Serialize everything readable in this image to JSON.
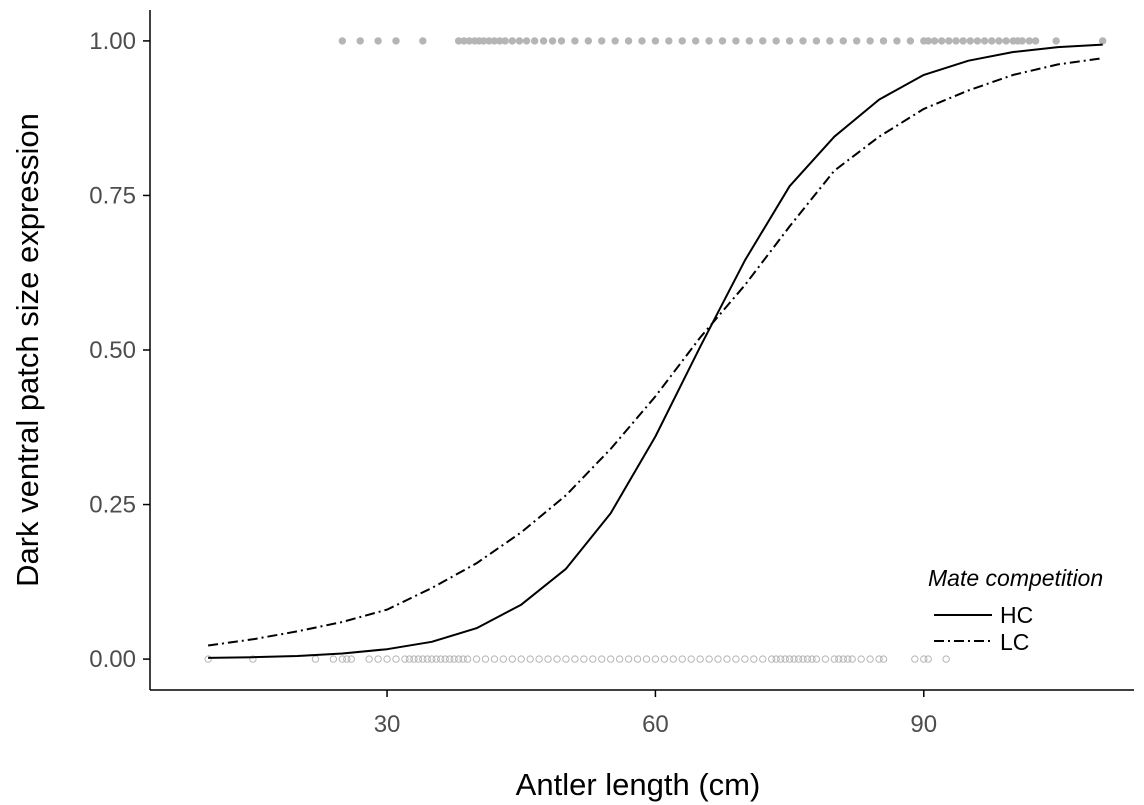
{
  "chart_data": {
    "type": "line",
    "title": "",
    "xlabel": "Antler length (cm)",
    "ylabel": "Dark ventral patch size expression",
    "xlim": [
      3.5,
      113.5
    ],
    "ylim": [
      -0.05,
      1.05
    ],
    "xticks": [
      30,
      60,
      90
    ],
    "xtick_labels": [
      "30",
      "60",
      "90"
    ],
    "yticks": [
      0,
      0.25,
      0.5,
      0.75,
      1
    ],
    "ytick_labels": [
      "0.00",
      "0.25",
      "0.50",
      "0.75",
      "1.00"
    ],
    "grid": false,
    "legend": {
      "title": "Mate competition",
      "position": "right",
      "entries": [
        "HC",
        "LC"
      ]
    },
    "series": [
      {
        "name": "HC",
        "line_style": "solid",
        "color": "#000000",
        "x": [
          10,
          15,
          20,
          25,
          30,
          35,
          40,
          45,
          50,
          55,
          60,
          65,
          70,
          75,
          80,
          85,
          90,
          95,
          100,
          105,
          110
        ],
        "y": [
          0.002,
          0.003,
          0.005,
          0.009,
          0.016,
          0.028,
          0.05,
          0.088,
          0.146,
          0.236,
          0.36,
          0.505,
          0.645,
          0.765,
          0.845,
          0.905,
          0.945,
          0.968,
          0.982,
          0.99,
          0.994
        ]
      },
      {
        "name": "LC",
        "line_style": "dashdot",
        "color": "#000000",
        "x": [
          10,
          15,
          20,
          25,
          30,
          35,
          40,
          45,
          50,
          55,
          60,
          65,
          70,
          75,
          80,
          85,
          90,
          95,
          100,
          105,
          110
        ],
        "y": [
          0.022,
          0.032,
          0.045,
          0.06,
          0.08,
          0.115,
          0.155,
          0.205,
          0.265,
          0.34,
          0.425,
          0.52,
          0.605,
          0.7,
          0.79,
          0.845,
          0.89,
          0.92,
          0.945,
          0.962,
          0.972
        ]
      }
    ],
    "observations": {
      "point_color": "#b5b5b5",
      "filled_at_1": [
        25,
        27,
        29,
        31,
        34,
        38,
        38.6,
        39.2,
        39.8,
        40.3,
        40.8,
        41.4,
        42,
        42.6,
        43.2,
        44,
        44.8,
        45.6,
        46.5,
        47.5,
        48.5,
        49.5,
        51,
        52.5,
        54,
        55.5,
        57,
        58.5,
        60,
        61.5,
        63,
        64.5,
        66,
        67.5,
        69,
        70.5,
        72,
        73.5,
        75,
        76.5,
        78,
        79.5,
        81,
        82.5,
        84,
        85.5,
        87,
        88.5,
        90,
        90.5,
        91.2,
        92,
        92.8,
        93.6,
        94.4,
        95.2,
        96,
        96.8,
        97.6,
        98.4,
        99.2,
        100,
        100.5,
        101,
        101.8,
        102.5,
        104.8,
        110
      ],
      "open_at_0": [
        10,
        15,
        22,
        24,
        25,
        25.5,
        26,
        28,
        29,
        30,
        31,
        32,
        32.5,
        33,
        33.5,
        34,
        34.5,
        35,
        35.5,
        36,
        36.5,
        37,
        37.5,
        38,
        38.5,
        39,
        40,
        41,
        42,
        43,
        44,
        45,
        46,
        47,
        48,
        49,
        50,
        51,
        52,
        53,
        54,
        55,
        56,
        57,
        58,
        59,
        60,
        61,
        62,
        63,
        64,
        65,
        66,
        67,
        68,
        69,
        70,
        71,
        72,
        73,
        73.5,
        74,
        74.5,
        75,
        75.5,
        76,
        76.5,
        77,
        77.5,
        78,
        79,
        80,
        80.5,
        81,
        81.5,
        82,
        83,
        84,
        85,
        85.5,
        89,
        90,
        90.5,
        92.5
      ]
    }
  }
}
